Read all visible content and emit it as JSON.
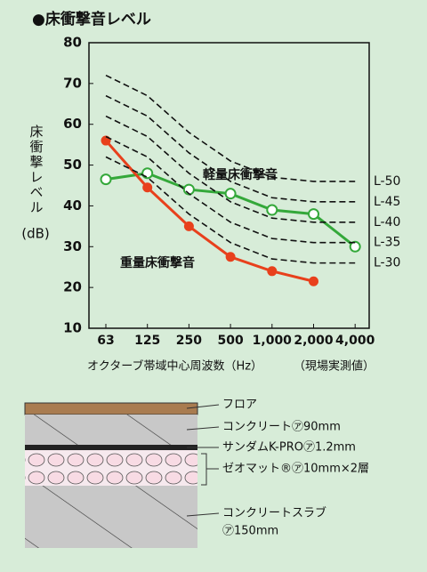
{
  "chart_data": {
    "type": "line",
    "title": "●床衝撃音レベル",
    "y_label": "床衝撃レベル",
    "y_unit": "(dB)",
    "x_label": "オクターブ帯域中心周波数（Hz）",
    "x_note": "（現場実測値）",
    "categories": [
      "63",
      "125",
      "250",
      "500",
      "1,000",
      "2,000",
      "4,000"
    ],
    "ylim": [
      10,
      80
    ],
    "yticks": [
      10,
      20,
      30,
      40,
      50,
      60,
      70,
      80
    ],
    "series": [
      {
        "name": "軽量床衝撃音",
        "color": "#34a83a",
        "values": [
          46.5,
          48,
          44,
          43,
          39,
          38,
          30
        ]
      },
      {
        "name": "重量床衝撃音",
        "color": "#e8401c",
        "values": [
          56,
          44.5,
          35,
          27.5,
          24,
          21.5,
          null
        ]
      },
      {
        "name": "L-50",
        "color": "#111111",
        "dashed": true,
        "values": [
          72,
          67,
          58,
          51,
          47,
          46,
          46
        ]
      },
      {
        "name": "L-45",
        "color": "#111111",
        "dashed": true,
        "values": [
          67,
          62,
          53,
          46,
          42,
          41,
          41
        ]
      },
      {
        "name": "L-40",
        "color": "#111111",
        "dashed": true,
        "values": [
          62,
          57,
          48,
          41,
          37,
          36,
          36
        ]
      },
      {
        "name": "L-35",
        "color": "#111111",
        "dashed": true,
        "values": [
          57,
          52,
          43,
          36,
          32,
          31,
          31
        ]
      },
      {
        "name": "L-30",
        "color": "#111111",
        "dashed": true,
        "values": [
          52,
          47,
          38,
          31,
          27,
          26,
          26
        ]
      }
    ]
  },
  "diagram": {
    "layers": [
      "フロア",
      "コンクリート㋐90mm",
      "サンダムK-PRO㋐1.2mm",
      "ゼオマット®㋐10mm×2層"
    ],
    "slab": [
      "コンクリートスラブ",
      "㋐150mm"
    ]
  }
}
